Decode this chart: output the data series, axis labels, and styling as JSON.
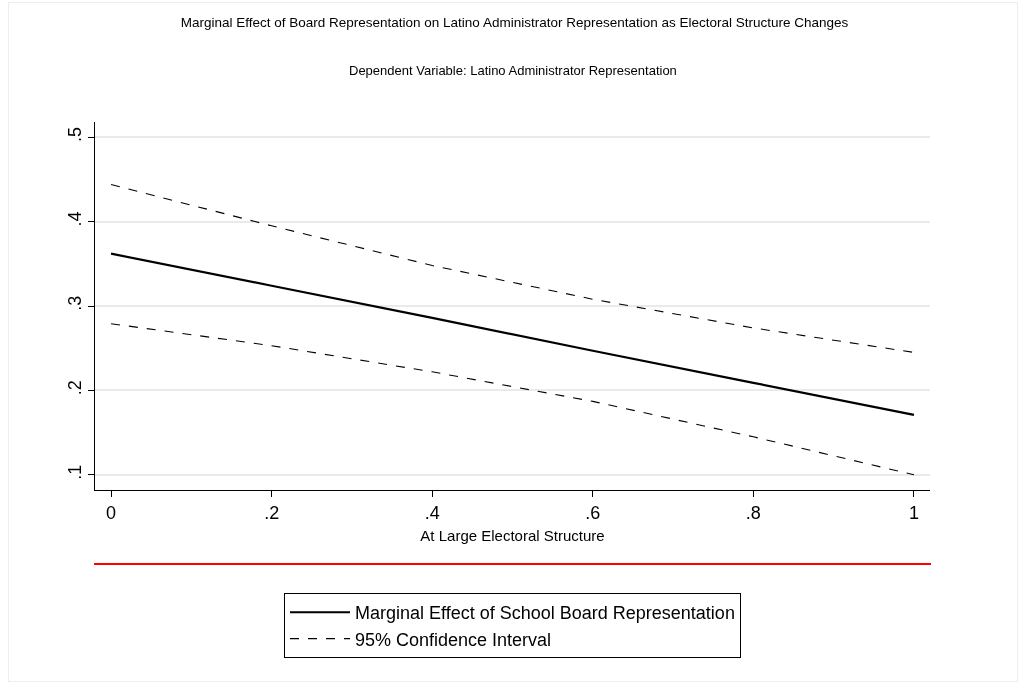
{
  "chart_data": {
    "type": "line",
    "title": "Marginal Effect of Board Representation on Latino Administrator Representation as Electoral Structure Changes",
    "subtitle": "Dependent Variable: Latino Administrator Representation",
    "xlabel": "At Large Electoral Structure",
    "x": [
      0,
      0.2,
      0.4,
      0.6,
      0.8,
      1
    ],
    "series": [
      {
        "name": "Marginal Effect of School Board Representation",
        "color": "#000000",
        "line_style": "solid",
        "values": [
          0.362,
          0.324,
          0.286,
          0.247,
          0.209,
          0.171
        ]
      },
      {
        "name": "95% Confidence Interval",
        "color": "#000000",
        "line_style": "dashed",
        "values": [
          0.444,
          0.395,
          0.348,
          0.308,
          0.274,
          0.245
        ]
      },
      {
        "color": "#000000",
        "line_style": "dashed",
        "values": [
          0.279,
          0.253,
          0.222,
          0.187,
          0.145,
          0.1
        ]
      }
    ],
    "xlim": [
      -0.02,
      1.02
    ],
    "xticks": [
      0,
      {
        "value": 0.2,
        "label": ".2"
      },
      {
        "value": 0.4,
        "label": ".4"
      },
      {
        "value": 0.6,
        "label": ".6"
      },
      {
        "value": 0.8,
        "label": ".8"
      },
      1
    ],
    "ylim": [
      0.082,
      0.518
    ],
    "yticks": [
      {
        "value": 0.1,
        "label": ".1"
      },
      {
        "value": 0.2,
        "label": ".2"
      },
      {
        "value": 0.3,
        "label": ".3"
      },
      {
        "value": 0.4,
        "label": ".4"
      },
      {
        "value": 0.5,
        "label": ".5"
      }
    ],
    "grid": "y",
    "legend": "bottom",
    "marker": "none"
  }
}
